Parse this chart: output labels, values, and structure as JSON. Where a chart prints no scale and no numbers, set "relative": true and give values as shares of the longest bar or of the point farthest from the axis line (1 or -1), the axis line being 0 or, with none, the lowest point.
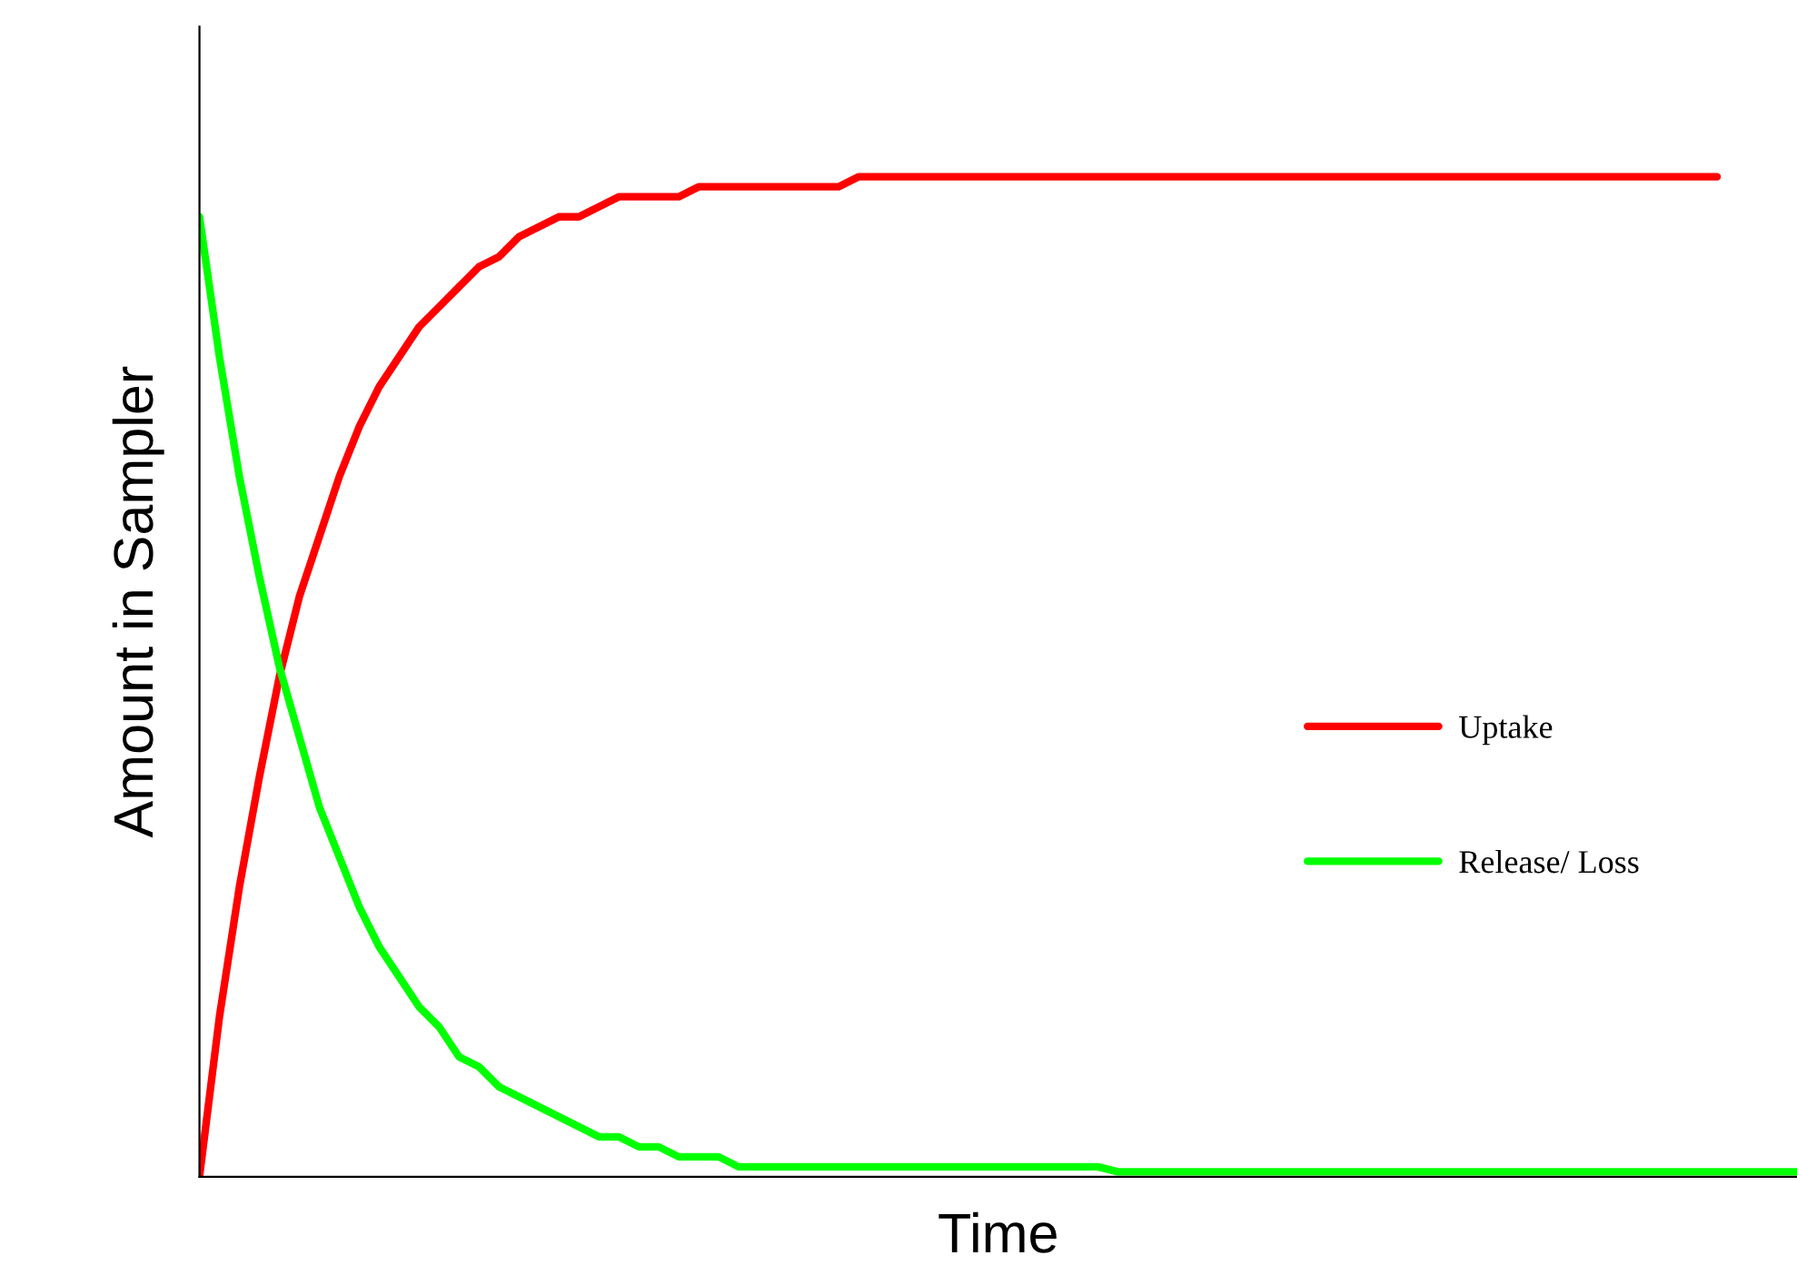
{
  "chart_data": {
    "type": "line",
    "relative": true,
    "xlabel": "Time",
    "ylabel": "Amount in Sampler",
    "legend": "right",
    "marker": "none",
    "line_style": "solid",
    "categories": [
      null,
      null,
      null,
      null,
      null,
      null,
      null,
      null,
      null,
      null,
      null,
      null,
      null,
      null,
      null,
      null,
      null,
      null,
      null,
      null,
      null,
      null,
      null,
      null,
      null,
      null,
      null,
      null,
      null,
      null,
      null,
      null,
      null,
      null,
      null,
      null,
      null,
      null,
      null,
      null,
      null,
      null,
      null,
      null,
      null,
      null,
      null,
      null,
      null,
      null,
      null,
      null,
      null,
      null,
      null,
      null,
      null,
      null,
      null,
      null,
      null,
      null,
      null,
      null,
      null,
      null,
      null,
      null,
      null,
      null,
      null,
      null,
      null,
      null,
      null,
      null,
      null,
      null,
      null,
      null,
      null
    ],
    "series": [
      {
        "name": "Uptake",
        "color": "#ff0000",
        "values": [
          0,
          0.16,
          0.29,
          0.4,
          0.5,
          0.58,
          0.64,
          0.7,
          0.75,
          0.79,
          0.82,
          0.85,
          0.87,
          0.89,
          0.91,
          0.92,
          0.94,
          0.95,
          0.96,
          0.96,
          0.97,
          0.98,
          0.98,
          0.98,
          0.98,
          0.99,
          0.99,
          0.99,
          0.99,
          0.99,
          0.99,
          0.99,
          0.99,
          1,
          1,
          1,
          1,
          1,
          1,
          1,
          1,
          1,
          1,
          1,
          1,
          1,
          1,
          1,
          1,
          1,
          1,
          1,
          1,
          1,
          1,
          1,
          1,
          1,
          1,
          1,
          1,
          1,
          1,
          1,
          1,
          1,
          1,
          1,
          1,
          1,
          1,
          1,
          1,
          1,
          1,
          1,
          1,
          null,
          null,
          null,
          null
        ]
      },
      {
        "name": "Release/ Loss",
        "color": "#00ff00",
        "values": [
          0.96,
          0.82,
          0.7,
          0.6,
          0.51,
          0.44,
          0.37,
          0.32,
          0.27,
          0.23,
          0.2,
          0.17,
          0.15,
          0.12,
          0.11,
          0.09,
          0.08,
          0.07,
          0.06,
          0.05,
          0.04,
          0.04,
          0.03,
          0.03,
          0.02,
          0.02,
          0.02,
          0.01,
          0.01,
          0.01,
          0.01,
          0.01,
          0.01,
          0.01,
          0.01,
          0.01,
          0.01,
          0.01,
          0.01,
          0.01,
          0.01,
          0.01,
          0.01,
          0.01,
          0.01,
          0.01,
          0.005,
          0.005,
          0.005,
          0.005,
          0.005,
          0.005,
          0.005,
          0.005,
          0.005,
          0.005,
          0.005,
          0.005,
          0.005,
          0.005,
          0.005,
          0.005,
          0.005,
          0.005,
          0.005,
          0.005,
          0.005,
          0.005,
          0.005,
          0.005,
          0.005,
          0.005,
          0.005,
          0.005,
          0.005,
          0.005,
          0.005,
          0.005,
          0.005,
          0.005,
          0.005
        ]
      }
    ]
  }
}
